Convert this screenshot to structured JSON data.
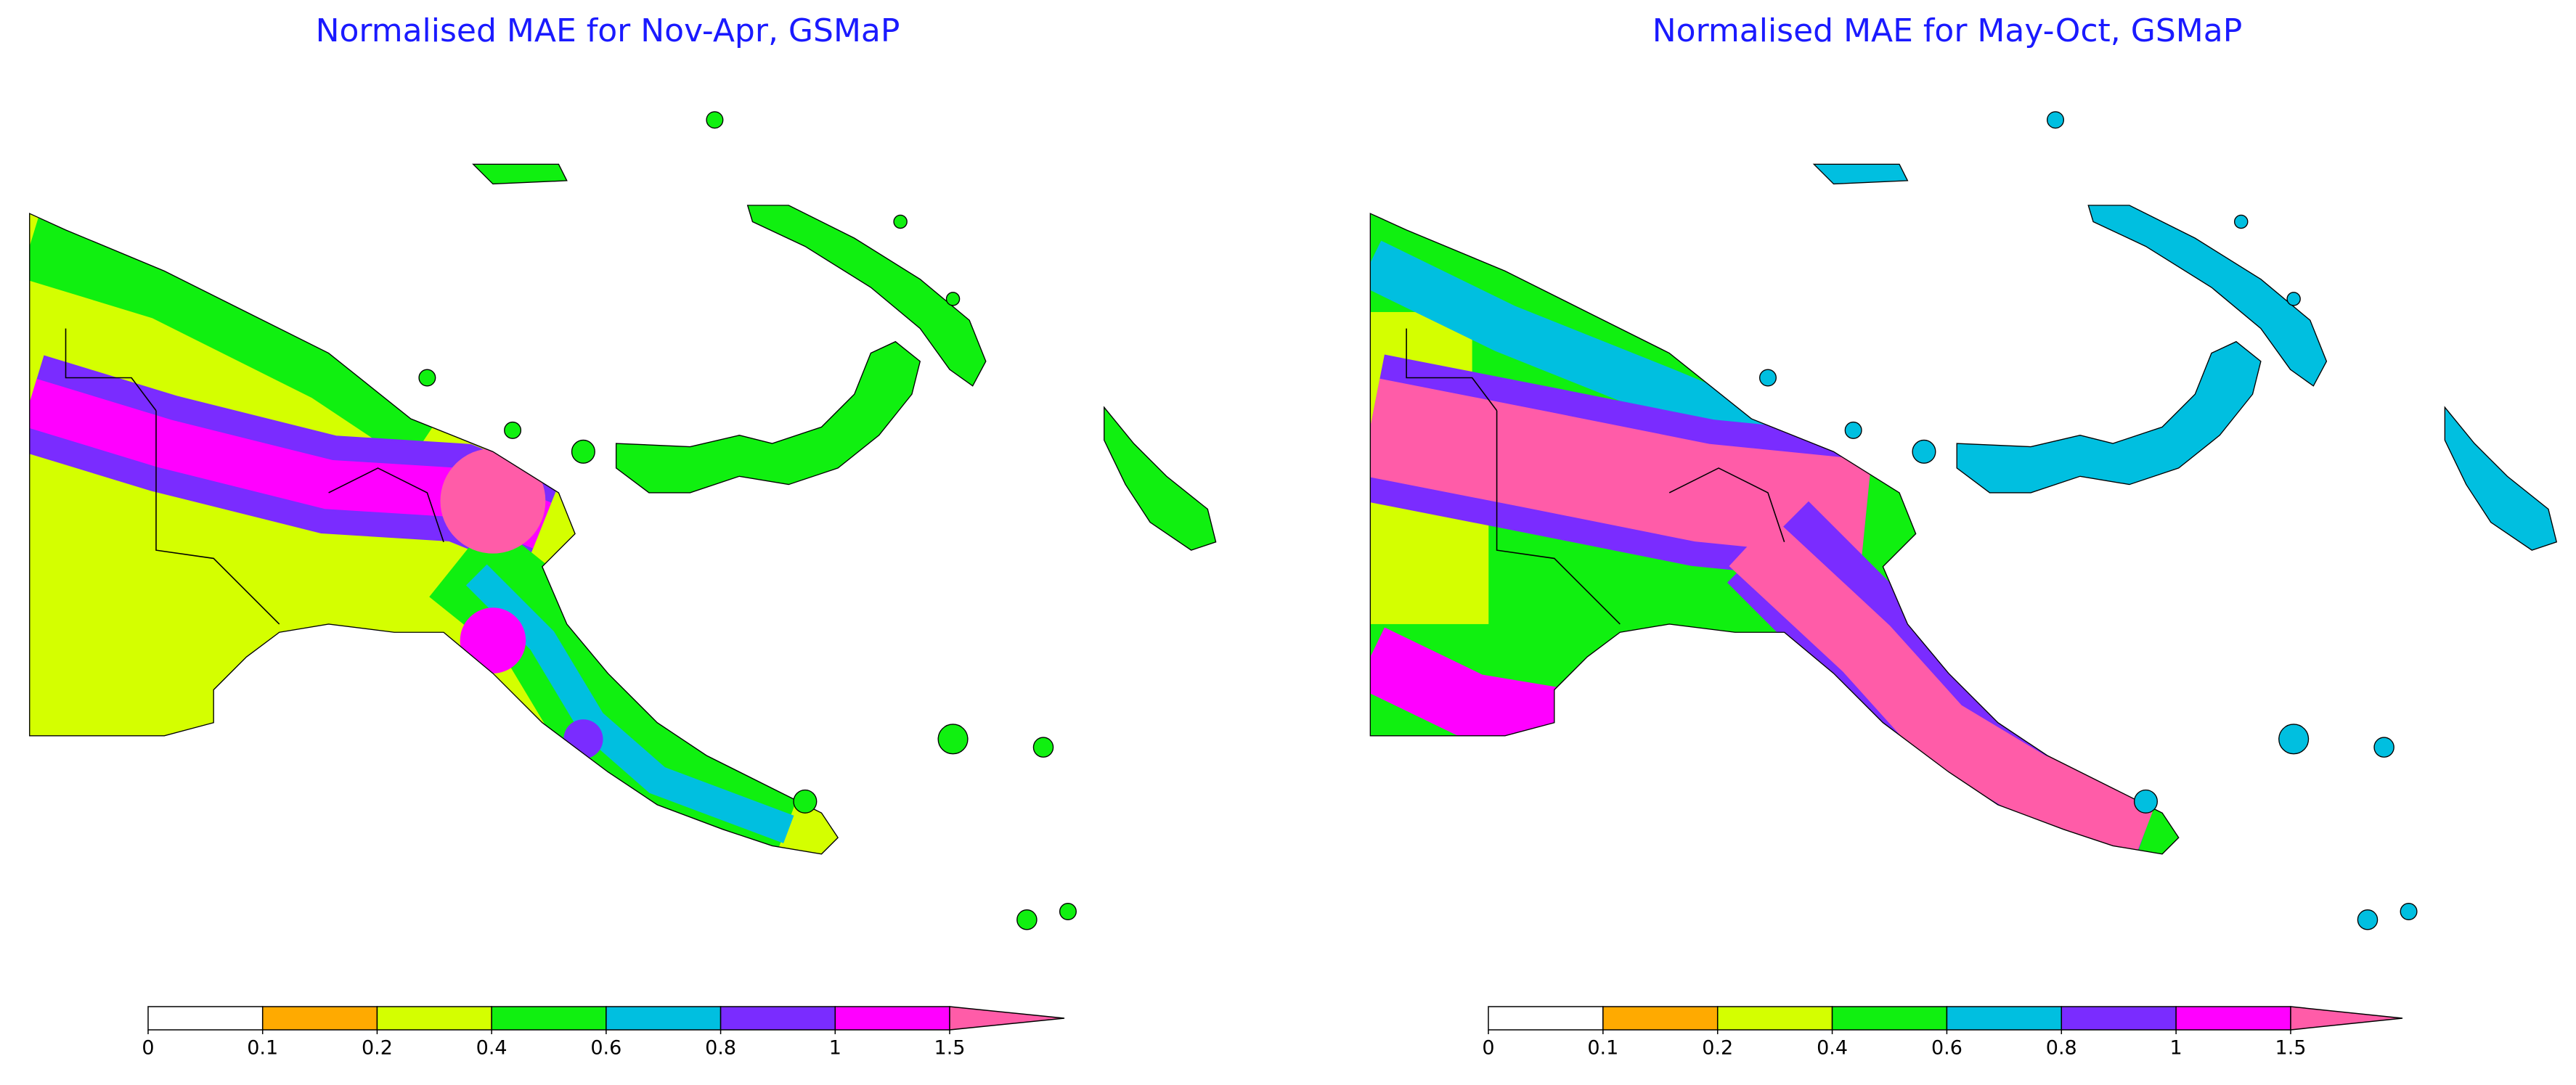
{
  "panels": [
    {
      "title": "Normalised MAE for Nov-Apr, GSMaP"
    },
    {
      "title": "Normalised MAE for May-Oct, GSMaP"
    }
  ],
  "colorbar": {
    "ticks": [
      0,
      0.1,
      0.2,
      0.4,
      0.6,
      0.8,
      1,
      1.5
    ],
    "colors": [
      "#ffffff",
      "#ffaa00",
      "#d4ff00",
      "#10f010",
      "#00bfe0",
      "#7a2cff",
      "#ff00ff"
    ],
    "extend_color": "#ff5ca8"
  }
}
